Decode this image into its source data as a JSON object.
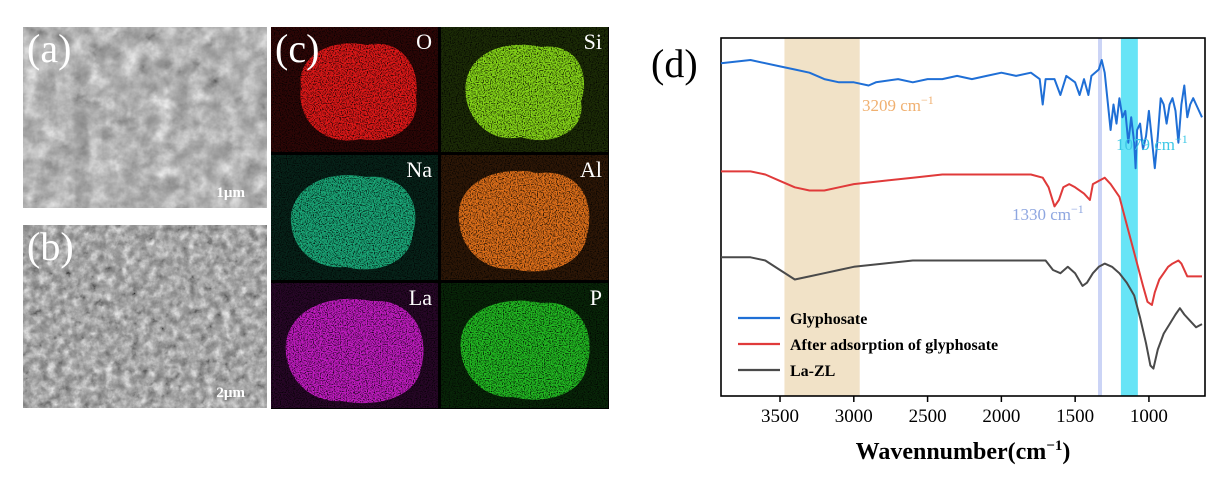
{
  "panels": {
    "a": {
      "label": "(a)",
      "scale_bar": "1µm"
    },
    "b": {
      "label": "(b)",
      "scale_bar": "2µm"
    },
    "c": {
      "label": "(c)",
      "elements": [
        {
          "symbol": "O",
          "color": "#e01818"
        },
        {
          "symbol": "Si",
          "color": "#86d618"
        },
        {
          "symbol": "Na",
          "color": "#1aa878"
        },
        {
          "symbol": "Al",
          "color": "#e0701a"
        },
        {
          "symbol": "La",
          "color": "#c21cc2"
        },
        {
          "symbol": "P",
          "color": "#22bb22"
        }
      ]
    },
    "d": {
      "label": "(d)"
    }
  },
  "chart_data": {
    "type": "line",
    "xlabel": "Wavennumber(cm",
    "xlabel_sup": "−1",
    "xlabel_close": ")",
    "x_reversed": true,
    "xlim": [
      3900,
      620
    ],
    "x_ticks": [
      3500,
      3000,
      2500,
      2000,
      1500,
      1000
    ],
    "y_ticks_shown": false,
    "grid": false,
    "legend_position": "bottom-left",
    "bands": [
      {
        "from": 3470,
        "to": 2960,
        "color": "#f0e0c4",
        "label": "3209 cm",
        "label_sup": "−1",
        "label_color": "#f0b070"
      },
      {
        "from": 1345,
        "to": 1318,
        "color": "#c8d2f5",
        "label": "1330 cm",
        "label_sup": "−1",
        "label_color": "#8ea6e0"
      },
      {
        "from": 1190,
        "to": 1075,
        "color": "#5fe3f5",
        "label": "1079 cm",
        "label_sup": "−1",
        "label_color": "#3cc8e6"
      }
    ],
    "series": [
      {
        "name": "Glyphosate",
        "color": "#1f6fd6",
        "points": [
          [
            3900,
            0.85
          ],
          [
            3700,
            0.86
          ],
          [
            3500,
            0.84
          ],
          [
            3400,
            0.83
          ],
          [
            3300,
            0.82
          ],
          [
            3200,
            0.8
          ],
          [
            3100,
            0.79
          ],
          [
            3000,
            0.79
          ],
          [
            2900,
            0.78
          ],
          [
            2850,
            0.79
          ],
          [
            2700,
            0.8
          ],
          [
            2600,
            0.79
          ],
          [
            2500,
            0.8
          ],
          [
            2400,
            0.8
          ],
          [
            2300,
            0.81
          ],
          [
            2200,
            0.8
          ],
          [
            2100,
            0.81
          ],
          [
            2000,
            0.82
          ],
          [
            1900,
            0.81
          ],
          [
            1800,
            0.82
          ],
          [
            1740,
            0.8
          ],
          [
            1720,
            0.72
          ],
          [
            1700,
            0.8
          ],
          [
            1640,
            0.8
          ],
          [
            1600,
            0.75
          ],
          [
            1560,
            0.81
          ],
          [
            1500,
            0.79
          ],
          [
            1470,
            0.75
          ],
          [
            1440,
            0.8
          ],
          [
            1410,
            0.75
          ],
          [
            1390,
            0.81
          ],
          [
            1340,
            0.83
          ],
          [
            1320,
            0.86
          ],
          [
            1300,
            0.82
          ],
          [
            1260,
            0.64
          ],
          [
            1240,
            0.72
          ],
          [
            1220,
            0.66
          ],
          [
            1200,
            0.74
          ],
          [
            1180,
            0.68
          ],
          [
            1160,
            0.7
          ],
          [
            1140,
            0.6
          ],
          [
            1120,
            0.68
          ],
          [
            1100,
            0.6
          ],
          [
            1090,
            0.52
          ],
          [
            1080,
            0.64
          ],
          [
            1060,
            0.66
          ],
          [
            1040,
            0.58
          ],
          [
            1020,
            0.62
          ],
          [
            1000,
            0.7
          ],
          [
            980,
            0.61
          ],
          [
            960,
            0.52
          ],
          [
            940,
            0.62
          ],
          [
            920,
            0.74
          ],
          [
            900,
            0.72
          ],
          [
            880,
            0.66
          ],
          [
            860,
            0.72
          ],
          [
            840,
            0.74
          ],
          [
            820,
            0.7
          ],
          [
            800,
            0.6
          ],
          [
            780,
            0.72
          ],
          [
            760,
            0.78
          ],
          [
            740,
            0.68
          ],
          [
            720,
            0.72
          ],
          [
            700,
            0.74
          ],
          [
            680,
            0.72
          ],
          [
            640,
            0.68
          ]
        ]
      },
      {
        "name": "After adsorption of glyphosate",
        "color": "#e03a3a",
        "points": [
          [
            3900,
            0.51
          ],
          [
            3700,
            0.51
          ],
          [
            3600,
            0.5
          ],
          [
            3500,
            0.48
          ],
          [
            3400,
            0.46
          ],
          [
            3300,
            0.45
          ],
          [
            3200,
            0.45
          ],
          [
            3100,
            0.46
          ],
          [
            3000,
            0.47
          ],
          [
            2800,
            0.48
          ],
          [
            2600,
            0.49
          ],
          [
            2400,
            0.5
          ],
          [
            2200,
            0.5
          ],
          [
            2000,
            0.5
          ],
          [
            1900,
            0.5
          ],
          [
            1800,
            0.5
          ],
          [
            1720,
            0.49
          ],
          [
            1680,
            0.46
          ],
          [
            1640,
            0.4
          ],
          [
            1610,
            0.42
          ],
          [
            1580,
            0.46
          ],
          [
            1540,
            0.47
          ],
          [
            1500,
            0.46
          ],
          [
            1440,
            0.44
          ],
          [
            1400,
            0.42
          ],
          [
            1380,
            0.47
          ],
          [
            1340,
            0.48
          ],
          [
            1300,
            0.49
          ],
          [
            1260,
            0.47
          ],
          [
            1200,
            0.43
          ],
          [
            1160,
            0.36
          ],
          [
            1120,
            0.29
          ],
          [
            1080,
            0.22
          ],
          [
            1040,
            0.15
          ],
          [
            1010,
            0.1
          ],
          [
            980,
            0.09
          ],
          [
            960,
            0.13
          ],
          [
            930,
            0.17
          ],
          [
            900,
            0.19
          ],
          [
            870,
            0.21
          ],
          [
            840,
            0.22
          ],
          [
            800,
            0.23
          ],
          [
            780,
            0.22
          ],
          [
            740,
            0.18
          ],
          [
            700,
            0.18
          ],
          [
            640,
            0.18
          ]
        ]
      },
      {
        "name": "La-ZL",
        "color": "#4a4a4a",
        "points": [
          [
            3900,
            0.24
          ],
          [
            3700,
            0.24
          ],
          [
            3600,
            0.23
          ],
          [
            3500,
            0.2
          ],
          [
            3400,
            0.17
          ],
          [
            3300,
            0.18
          ],
          [
            3200,
            0.19
          ],
          [
            3100,
            0.2
          ],
          [
            3000,
            0.21
          ],
          [
            2800,
            0.22
          ],
          [
            2600,
            0.23
          ],
          [
            2400,
            0.23
          ],
          [
            2200,
            0.23
          ],
          [
            2000,
            0.23
          ],
          [
            1900,
            0.23
          ],
          [
            1800,
            0.23
          ],
          [
            1700,
            0.23
          ],
          [
            1650,
            0.2
          ],
          [
            1600,
            0.19
          ],
          [
            1550,
            0.21
          ],
          [
            1500,
            0.19
          ],
          [
            1450,
            0.15
          ],
          [
            1420,
            0.16
          ],
          [
            1380,
            0.19
          ],
          [
            1340,
            0.21
          ],
          [
            1300,
            0.22
          ],
          [
            1250,
            0.21
          ],
          [
            1200,
            0.19
          ],
          [
            1150,
            0.16
          ],
          [
            1100,
            0.12
          ],
          [
            1060,
            0.05
          ],
          [
            1020,
            -0.03
          ],
          [
            990,
            -0.1
          ],
          [
            970,
            -0.11
          ],
          [
            940,
            -0.05
          ],
          [
            900,
            0.0
          ],
          [
            860,
            0.03
          ],
          [
            820,
            0.06
          ],
          [
            790,
            0.08
          ],
          [
            760,
            0.06
          ],
          [
            720,
            0.04
          ],
          [
            680,
            0.02
          ],
          [
            640,
            0.03
          ]
        ]
      }
    ]
  }
}
